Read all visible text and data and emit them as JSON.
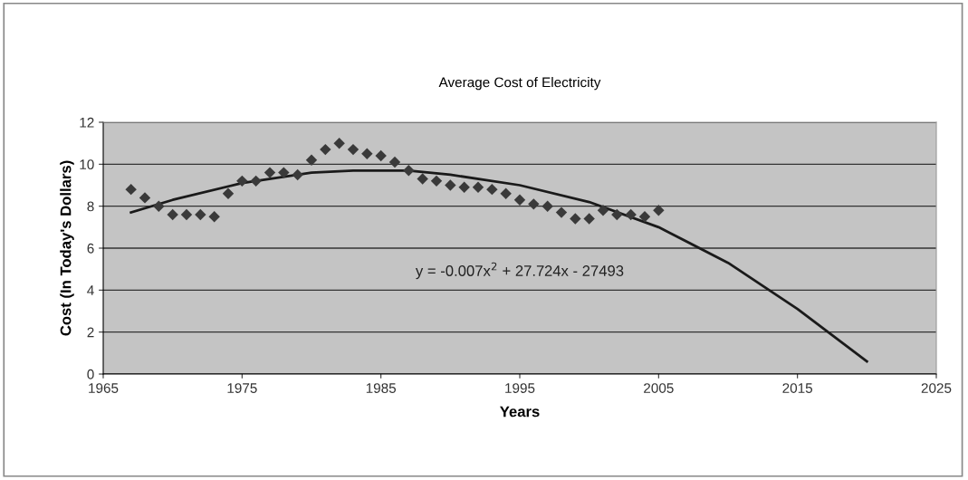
{
  "chart_data": {
    "type": "scatter",
    "title": "Average Cost of Electricity",
    "xlabel": "Years",
    "ylabel": "Cost (In Today's Dollars)",
    "series": [
      {
        "color": "#3a3a3a",
        "marker": "diamond",
        "x": [
          1967,
          1968,
          1969,
          1970,
          1971,
          1972,
          1973,
          1974,
          1975,
          1976,
          1977,
          1978,
          1979,
          1980,
          1981,
          1982,
          1983,
          1984,
          1985,
          1986,
          1987,
          1988,
          1989,
          1990,
          1991,
          1992,
          1993,
          1994,
          1995,
          1996,
          1997,
          1998,
          1999,
          2000,
          2001,
          2002,
          2003,
          2004,
          2005
        ],
        "values": [
          8.8,
          8.4,
          8.0,
          7.6,
          7.6,
          7.6,
          7.5,
          8.6,
          9.2,
          9.2,
          9.6,
          9.6,
          9.5,
          10.2,
          10.7,
          11.0,
          10.7,
          10.5,
          10.4,
          10.1,
          9.7,
          9.3,
          9.2,
          9.0,
          8.9,
          8.9,
          8.8,
          8.6,
          8.3,
          8.1,
          8.0,
          7.7,
          7.4,
          7.4,
          7.8,
          7.6,
          7.6,
          7.5,
          7.8
        ]
      },
      {
        "type": "line",
        "color": "#1a1a1a",
        "x": [
          1967,
          1970,
          1975,
          1980,
          1983,
          1987,
          1990,
          1995,
          2000,
          2005,
          2010,
          2015,
          2018,
          2020
        ],
        "values": [
          7.7,
          8.3,
          9.1,
          9.6,
          9.7,
          9.7,
          9.5,
          9.0,
          8.2,
          7.0,
          5.3,
          3.1,
          1.6,
          0.6
        ]
      }
    ],
    "xlim": [
      1965,
      2025
    ],
    "xticks": [
      1965,
      1975,
      1985,
      1995,
      2005,
      2015,
      2025
    ],
    "ylim": [
      0,
      12
    ],
    "yticks": [
      0,
      2,
      4,
      6,
      8,
      10,
      12
    ],
    "grid": "y",
    "annotations": [
      "y = -0.007x$^{2}$ + 27.724x - 27493"
    ]
  }
}
